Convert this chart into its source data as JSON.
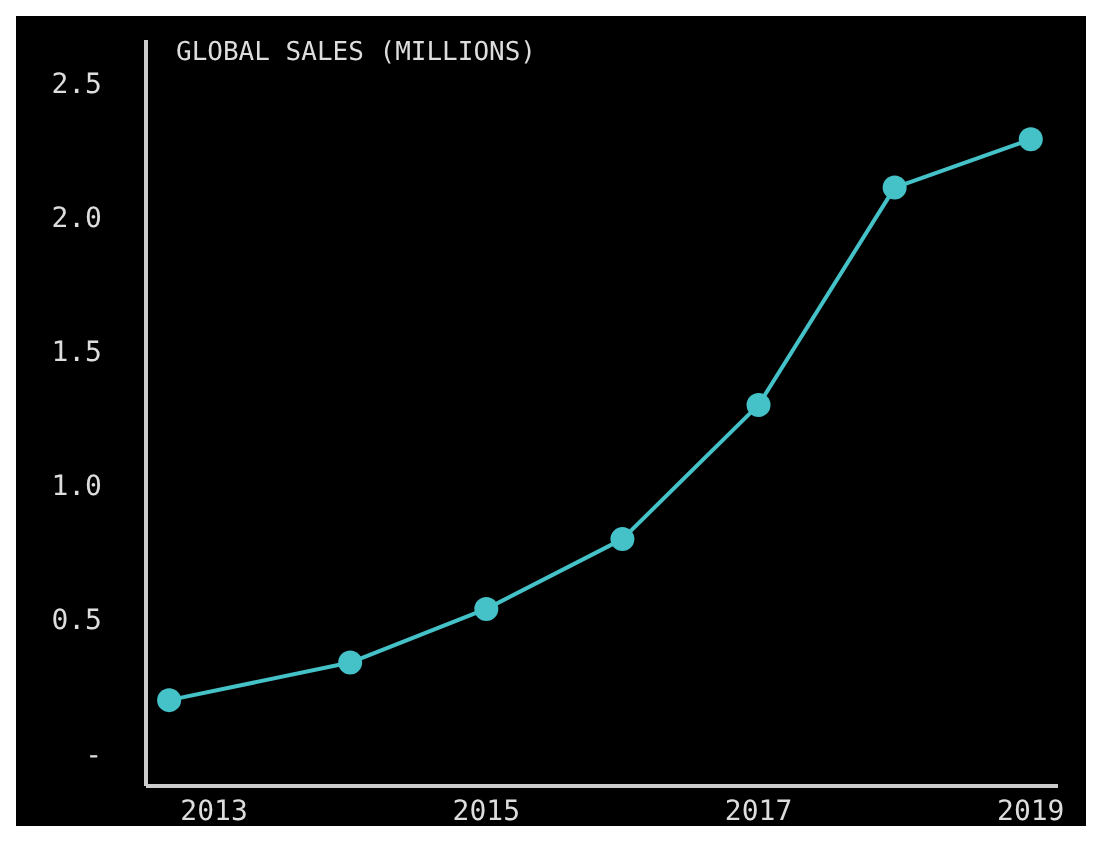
{
  "chart_data": {
    "type": "line",
    "title": "GLOBAL SALES (MILLIONS)",
    "series": [
      {
        "color": "#45c1c8",
        "x": [
          2012.67,
          2014,
          2015,
          2016,
          2017,
          2018,
          2019
        ],
        "values": [
          0.2,
          0.34,
          0.54,
          0.8,
          1.3,
          2.11,
          2.29
        ]
      }
    ],
    "xlim": [
      2012.5,
      2019.2
    ],
    "xticks": [
      2013,
      2015,
      2017,
      2019
    ],
    "ylim": [
      -0.12,
      2.66
    ],
    "yticks": [
      {
        "value": 0,
        "label": "-"
      },
      0.5,
      {
        "value": 1,
        "label": "1.0"
      },
      1.5,
      {
        "value": 2,
        "label": "2.0"
      },
      2.5
    ],
    "marker": "circle",
    "grid": false
  }
}
